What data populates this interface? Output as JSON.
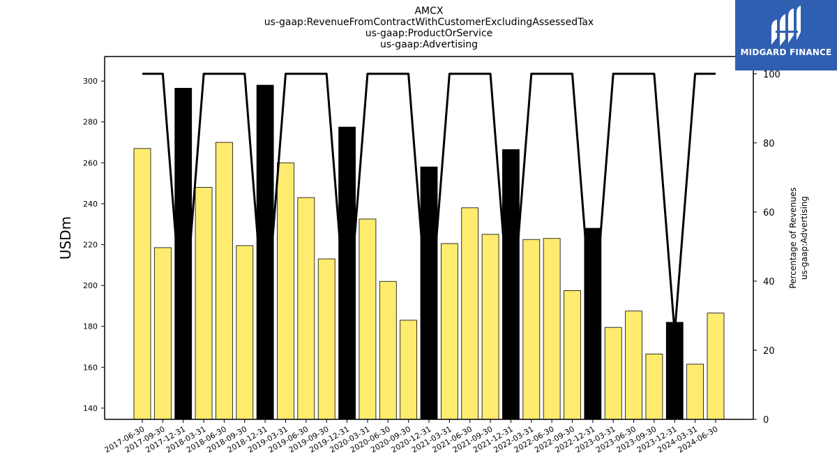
{
  "titles": [
    "AMCX",
    "us-gaap:RevenueFromContractWithCustomerExcludingAssessedTax",
    "us-gaap:ProductOrService",
    "us-gaap:Advertising"
  ],
  "brand": {
    "name": "MIDGARD FINANCE",
    "color": "#2f5fb0",
    "logo_icon": "midgard-logo-icon"
  },
  "chart_data": {
    "type": "bar",
    "categories": [
      "2017-06-30",
      "2017-09-30",
      "2017-12-31",
      "2018-03-31",
      "2018-06-30",
      "2018-09-30",
      "2018-12-31",
      "2019-03-31",
      "2019-06-30",
      "2019-09-30",
      "2019-12-31",
      "2020-03-31",
      "2020-06-30",
      "2020-09-30",
      "2020-12-31",
      "2021-03-31",
      "2021-06-30",
      "2021-09-30",
      "2021-12-31",
      "2022-03-31",
      "2022-06-30",
      "2022-09-30",
      "2022-12-31",
      "2023-03-31",
      "2023-06-30",
      "2023-09-30",
      "2023-12-31",
      "2024-03-31",
      "2024-06-30"
    ],
    "values": [
      267,
      218.5,
      296.5,
      248,
      270,
      219.5,
      298,
      260,
      243,
      213,
      277.5,
      232.5,
      202,
      183,
      258,
      220.5,
      238,
      225,
      266.5,
      222.5,
      223,
      197.5,
      228,
      179.5,
      187.5,
      166.5,
      182,
      161.5,
      186.5
    ],
    "bar_kind": [
      "q",
      "q",
      "a",
      "q",
      "q",
      "q",
      "a",
      "q",
      "q",
      "q",
      "a",
      "q",
      "q",
      "q",
      "a",
      "q",
      "q",
      "q",
      "a",
      "q",
      "q",
      "q",
      "a",
      "q",
      "q",
      "q",
      "a",
      "q",
      "q"
    ],
    "colors": {
      "quarter": "#ffeb6e",
      "annual": "#000000",
      "edge": "#000000",
      "line": "#000000"
    },
    "series": [
      {
        "axis": "right",
        "type": "line",
        "values": [
          100,
          100,
          25,
          100,
          100,
          100,
          25,
          100,
          100,
          100,
          25,
          100,
          100,
          100,
          25,
          100,
          100,
          100,
          25,
          100,
          100,
          100,
          25,
          100,
          100,
          100,
          25,
          100,
          100
        ]
      }
    ],
    "xlabel": "",
    "ylabel": "USDm",
    "ylabel_right": [
      "Percentage of Revenues",
      "us-gaap:Advertising"
    ],
    "ylim": [
      134.5,
      312
    ],
    "yticks": [
      140,
      160,
      180,
      200,
      220,
      240,
      260,
      280,
      300
    ],
    "ylim_right": [
      0,
      105
    ],
    "yticks_right": [
      0,
      20,
      40,
      60,
      80,
      100
    ],
    "grid": false,
    "legend": "none"
  }
}
